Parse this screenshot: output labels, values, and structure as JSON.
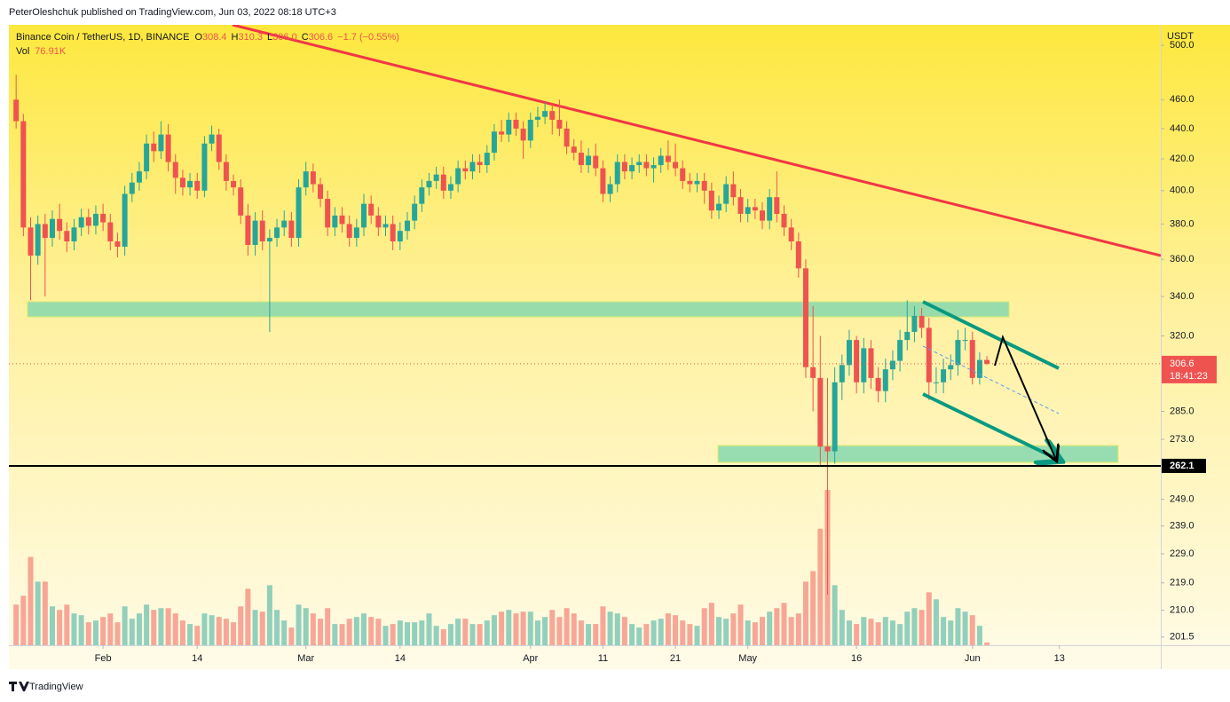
{
  "page": {
    "publisher": "PeterOleshchuk published on TradingView.com, Jun 03, 2022 08:18 UTC+3",
    "brand": "TradingView"
  },
  "chart_data": {
    "type": "candlestick",
    "symbol": "Binance Coin / TetherUS, 1D, BINANCE",
    "ohlc_names": [
      "O",
      "H",
      "L",
      "C"
    ],
    "ohlc_labels": [
      "308.4",
      "310.3",
      "306.0",
      "306.6"
    ],
    "change": "−1.7 (−0.55%)",
    "volume_name": "Vol",
    "volume_last_label": "76.91K",
    "currency": "USDT",
    "countdown": "18:41:23",
    "log_scale": true,
    "grid": false,
    "up_color": "#26a69a",
    "down_color": "#ef5350",
    "ylim": [
      199,
      516
    ],
    "yticks": [
      {
        "value": 500,
        "label": "500.0"
      },
      {
        "value": 460,
        "label": "460.0"
      },
      {
        "value": 440,
        "label": "440.0"
      },
      {
        "value": 420,
        "label": "420.0"
      },
      {
        "value": 400,
        "label": "400.0"
      },
      {
        "value": 380,
        "label": "380.0"
      },
      {
        "value": 360,
        "label": "360.0"
      },
      {
        "value": 340,
        "label": "340.0"
      },
      {
        "value": 320,
        "label": "320.0"
      },
      {
        "value": 285,
        "label": "285.0"
      },
      {
        "value": 273,
        "label": "273.0"
      },
      {
        "value": 249,
        "label": "249.0"
      },
      {
        "value": 239,
        "label": "239.0"
      },
      {
        "value": 229,
        "label": "229.0"
      },
      {
        "value": 219,
        "label": "219.0"
      },
      {
        "value": 210,
        "label": "210.0"
      },
      {
        "value": 201.5,
        "label": "201.5"
      }
    ],
    "hline": 262.1,
    "xlim": [
      "2022-01-19",
      "2022-06-27"
    ],
    "xticks": [
      {
        "value": "2022-02-01",
        "label": "Feb"
      },
      {
        "value": "2022-02-14",
        "label": "14"
      },
      {
        "value": "2022-03-01",
        "label": "Mar"
      },
      {
        "value": "2022-03-14",
        "label": "14"
      },
      {
        "value": "2022-04-01",
        "label": "Apr"
      },
      {
        "value": "2022-04-11",
        "label": "11"
      },
      {
        "value": "2022-04-21",
        "label": "21"
      },
      {
        "value": "2022-05-01",
        "label": "May"
      },
      {
        "value": "2022-05-16",
        "label": "16"
      },
      {
        "value": "2022-06-01",
        "label": "Jun"
      },
      {
        "value": "2022-06-13",
        "label": "13"
      }
    ],
    "x": [
      "2022-01-20",
      "2022-01-21",
      "2022-01-22",
      "2022-01-23",
      "2022-01-24",
      "2022-01-25",
      "2022-01-26",
      "2022-01-27",
      "2022-01-28",
      "2022-01-29",
      "2022-01-30",
      "2022-01-31",
      "2022-02-01",
      "2022-02-02",
      "2022-02-03",
      "2022-02-04",
      "2022-02-05",
      "2022-02-06",
      "2022-02-07",
      "2022-02-08",
      "2022-02-09",
      "2022-02-10",
      "2022-02-11",
      "2022-02-12",
      "2022-02-13",
      "2022-02-14",
      "2022-02-15",
      "2022-02-16",
      "2022-02-17",
      "2022-02-18",
      "2022-02-19",
      "2022-02-20",
      "2022-02-21",
      "2022-02-22",
      "2022-02-23",
      "2022-02-24",
      "2022-02-25",
      "2022-02-26",
      "2022-02-27",
      "2022-02-28",
      "2022-03-01",
      "2022-03-02",
      "2022-03-03",
      "2022-03-04",
      "2022-03-05",
      "2022-03-06",
      "2022-03-07",
      "2022-03-08",
      "2022-03-09",
      "2022-03-10",
      "2022-03-11",
      "2022-03-12",
      "2022-03-13",
      "2022-03-14",
      "2022-03-15",
      "2022-03-16",
      "2022-03-17",
      "2022-03-18",
      "2022-03-19",
      "2022-03-20",
      "2022-03-21",
      "2022-03-22",
      "2022-03-23",
      "2022-03-24",
      "2022-03-25",
      "2022-03-26",
      "2022-03-27",
      "2022-03-28",
      "2022-03-29",
      "2022-03-30",
      "2022-03-31",
      "2022-04-01",
      "2022-04-02",
      "2022-04-03",
      "2022-04-04",
      "2022-04-05",
      "2022-04-06",
      "2022-04-07",
      "2022-04-08",
      "2022-04-09",
      "2022-04-10",
      "2022-04-11",
      "2022-04-12",
      "2022-04-13",
      "2022-04-14",
      "2022-04-15",
      "2022-04-16",
      "2022-04-17",
      "2022-04-18",
      "2022-04-19",
      "2022-04-20",
      "2022-04-21",
      "2022-04-22",
      "2022-04-23",
      "2022-04-24",
      "2022-04-25",
      "2022-04-26",
      "2022-04-27",
      "2022-04-28",
      "2022-04-29",
      "2022-04-30",
      "2022-05-01",
      "2022-05-02",
      "2022-05-03",
      "2022-05-04",
      "2022-05-05",
      "2022-05-06",
      "2022-05-07",
      "2022-05-08",
      "2022-05-09",
      "2022-05-10",
      "2022-05-11",
      "2022-05-12",
      "2022-05-13",
      "2022-05-14",
      "2022-05-15",
      "2022-05-16",
      "2022-05-17",
      "2022-05-18",
      "2022-05-19",
      "2022-05-20",
      "2022-05-21",
      "2022-05-22",
      "2022-05-23",
      "2022-05-24",
      "2022-05-25",
      "2022-05-26",
      "2022-05-27",
      "2022-05-28",
      "2022-05-29",
      "2022-05-30",
      "2022-05-31",
      "2022-06-01",
      "2022-06-02",
      "2022-06-03"
    ],
    "candles": [
      [
        460,
        478,
        440,
        445
      ],
      [
        445,
        450,
        373,
        378
      ],
      [
        378,
        384,
        338,
        362
      ],
      [
        362,
        385,
        357,
        380
      ],
      [
        380,
        386,
        340,
        372
      ],
      [
        372,
        388,
        367,
        383
      ],
      [
        383,
        392,
        371,
        376
      ],
      [
        376,
        381,
        364,
        370
      ],
      [
        370,
        383,
        365,
        378
      ],
      [
        378,
        389,
        373,
        384
      ],
      [
        384,
        389,
        374,
        379
      ],
      [
        379,
        391,
        374,
        386
      ],
      [
        386,
        392,
        376,
        381
      ],
      [
        381,
        386,
        365,
        370
      ],
      [
        370,
        375,
        361,
        367
      ],
      [
        367,
        403,
        362,
        398
      ],
      [
        398,
        411,
        393,
        405
      ],
      [
        405,
        418,
        400,
        412
      ],
      [
        412,
        436,
        407,
        430
      ],
      [
        430,
        438,
        418,
        425
      ],
      [
        425,
        445,
        420,
        436
      ],
      [
        436,
        443,
        412,
        418
      ],
      [
        418,
        423,
        398,
        408
      ],
      [
        408,
        413,
        397,
        402
      ],
      [
        402,
        411,
        397,
        406
      ],
      [
        406,
        411,
        395,
        400
      ],
      [
        400,
        435,
        396,
        430
      ],
      [
        430,
        442,
        425,
        436
      ],
      [
        436,
        440,
        413,
        418
      ],
      [
        418,
        423,
        400,
        406
      ],
      [
        406,
        410,
        397,
        402
      ],
      [
        402,
        407,
        380,
        385
      ],
      [
        385,
        392,
        362,
        368
      ],
      [
        368,
        387,
        362,
        382
      ],
      [
        382,
        388,
        365,
        370
      ],
      [
        370,
        377,
        322,
        372
      ],
      [
        372,
        383,
        367,
        378
      ],
      [
        378,
        388,
        373,
        382
      ],
      [
        382,
        387,
        367,
        372
      ],
      [
        372,
        407,
        367,
        402
      ],
      [
        402,
        418,
        397,
        412
      ],
      [
        412,
        417,
        399,
        404
      ],
      [
        404,
        408,
        390,
        395
      ],
      [
        395,
        400,
        373,
        378
      ],
      [
        378,
        390,
        373,
        385
      ],
      [
        385,
        390,
        375,
        380
      ],
      [
        380,
        385,
        367,
        372
      ],
      [
        372,
        383,
        367,
        378
      ],
      [
        378,
        398,
        373,
        392
      ],
      [
        392,
        397,
        380,
        385
      ],
      [
        385,
        390,
        373,
        378
      ],
      [
        378,
        385,
        373,
        380
      ],
      [
        380,
        385,
        365,
        370
      ],
      [
        370,
        381,
        365,
        376
      ],
      [
        376,
        387,
        371,
        382
      ],
      [
        382,
        397,
        377,
        392
      ],
      [
        392,
        407,
        387,
        402
      ],
      [
        402,
        411,
        397,
        406
      ],
      [
        406,
        415,
        401,
        410
      ],
      [
        410,
        415,
        395,
        400
      ],
      [
        400,
        409,
        395,
        404
      ],
      [
        404,
        419,
        399,
        414
      ],
      [
        414,
        419,
        407,
        412
      ],
      [
        412,
        423,
        407,
        418
      ],
      [
        418,
        423,
        411,
        416
      ],
      [
        416,
        429,
        411,
        424
      ],
      [
        424,
        443,
        419,
        438
      ],
      [
        438,
        446,
        431,
        436
      ],
      [
        436,
        451,
        431,
        446
      ],
      [
        446,
        451,
        435,
        440
      ],
      [
        440,
        445,
        420,
        432
      ],
      [
        432,
        451,
        427,
        446
      ],
      [
        446,
        455,
        441,
        448
      ],
      [
        448,
        458,
        443,
        452
      ],
      [
        452,
        457,
        436,
        446
      ],
      [
        446,
        460,
        435,
        440
      ],
      [
        440,
        445,
        423,
        428
      ],
      [
        428,
        433,
        419,
        424
      ],
      [
        424,
        432,
        411,
        416
      ],
      [
        416,
        427,
        411,
        422
      ],
      [
        422,
        430,
        409,
        414
      ],
      [
        414,
        419,
        393,
        398
      ],
      [
        398,
        409,
        393,
        404
      ],
      [
        404,
        423,
        399,
        418
      ],
      [
        418,
        423,
        407,
        412
      ],
      [
        412,
        421,
        407,
        416
      ],
      [
        416,
        423,
        411,
        418
      ],
      [
        418,
        423,
        409,
        414
      ],
      [
        414,
        421,
        405,
        416
      ],
      [
        416,
        427,
        411,
        422
      ],
      [
        422,
        432,
        413,
        418
      ],
      [
        418,
        430,
        409,
        414
      ],
      [
        414,
        419,
        401,
        406
      ],
      [
        406,
        411,
        399,
        404
      ],
      [
        404,
        411,
        399,
        406
      ],
      [
        406,
        411,
        392,
        400
      ],
      [
        400,
        405,
        383,
        388
      ],
      [
        388,
        397,
        383,
        392
      ],
      [
        392,
        409,
        387,
        404
      ],
      [
        404,
        412,
        391,
        396
      ],
      [
        396,
        401,
        381,
        386
      ],
      [
        386,
        395,
        381,
        390
      ],
      [
        390,
        395,
        383,
        388
      ],
      [
        388,
        393,
        377,
        382
      ],
      [
        382,
        401,
        377,
        396
      ],
      [
        396,
        412,
        381,
        386
      ],
      [
        386,
        391,
        373,
        378
      ],
      [
        378,
        383,
        365,
        370
      ],
      [
        370,
        375,
        350,
        355
      ],
      [
        355,
        360,
        300,
        305
      ],
      [
        305,
        335,
        285,
        300
      ],
      [
        300,
        320,
        262,
        270
      ],
      [
        270,
        300,
        215,
        268
      ],
      [
        268,
        305,
        263,
        298
      ],
      [
        298,
        311,
        290,
        306
      ],
      [
        306,
        323,
        301,
        318
      ],
      [
        318,
        320,
        293,
        298
      ],
      [
        298,
        319,
        293,
        314
      ],
      [
        314,
        318,
        295,
        300
      ],
      [
        300,
        305,
        289,
        294
      ],
      [
        294,
        309,
        289,
        304
      ],
      [
        304,
        313,
        299,
        308
      ],
      [
        308,
        323,
        303,
        318
      ],
      [
        318,
        338,
        313,
        322
      ],
      [
        322,
        335,
        317,
        330
      ],
      [
        330,
        334,
        319,
        324
      ],
      [
        324,
        329,
        290,
        298
      ],
      [
        298,
        305,
        293,
        298
      ],
      [
        298,
        309,
        293,
        304
      ],
      [
        304,
        311,
        299,
        306
      ],
      [
        306,
        323,
        301,
        318
      ],
      [
        318,
        324,
        313,
        318
      ],
      [
        318,
        322,
        297,
        300
      ],
      [
        300,
        312,
        297,
        308.4
      ],
      [
        308.4,
        310.3,
        306.0,
        306.6
      ]
    ],
    "volume": [
      1150,
      1400,
      2500,
      1800,
      1800,
      1100,
      1000,
      1150,
      900,
      850,
      650,
      700,
      800,
      900,
      650,
      1100,
      750,
      900,
      1150,
      1000,
      1050,
      1050,
      900,
      700,
      600,
      550,
      900,
      850,
      800,
      750,
      650,
      1100,
      1600,
      1000,
      950,
      1700,
      1000,
      700,
      500,
      1150,
      1050,
      900,
      750,
      1050,
      600,
      600,
      750,
      800,
      900,
      800,
      750,
      550,
      600,
      700,
      650,
      650,
      700,
      900,
      550,
      450,
      600,
      750,
      750,
      600,
      600,
      700,
      850,
      950,
      1000,
      900,
      950,
      950,
      700,
      800,
      1000,
      800,
      1050,
      900,
      700,
      600,
      600,
      1100,
      950,
      900,
      800,
      600,
      500,
      600,
      700,
      750,
      900,
      850,
      700,
      600,
      550,
      1050,
      1200,
      800,
      750,
      900,
      1150,
      700,
      650,
      800,
      950,
      1050,
      1200,
      800,
      900,
      1800,
      2100,
      3300,
      4400,
      1700,
      1000,
      700,
      600,
      800,
      750,
      650,
      800,
      700,
      600,
      950,
      1050,
      1000,
      1500,
      1300,
      800,
      700,
      1050,
      950,
      850,
      550,
      76.91
    ]
  }
}
